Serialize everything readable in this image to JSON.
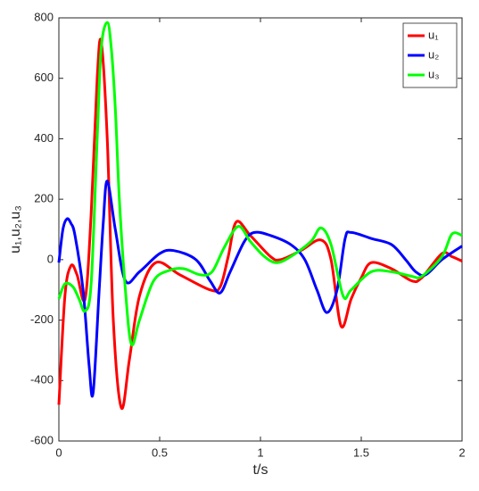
{
  "chart_data": {
    "type": "line",
    "xlabel": "t/s",
    "ylabel": "u₁,u₂,u₃",
    "xlim": [
      0,
      2
    ],
    "ylim": [
      -600,
      800
    ],
    "xticks": [
      0,
      0.5,
      1,
      1.5,
      2
    ],
    "yticks": [
      -600,
      -400,
      -200,
      0,
      200,
      400,
      600,
      800
    ],
    "legend": "upper right",
    "series": [
      {
        "name": "u₁",
        "color": "#ff0000",
        "x": [
          0,
          0.03,
          0.06,
          0.09,
          0.13,
          0.16,
          0.19,
          0.21,
          0.24,
          0.27,
          0.31,
          0.35,
          0.4,
          0.48,
          0.6,
          0.75,
          0.8,
          0.84,
          0.88,
          0.95,
          1.05,
          1.1,
          1.2,
          1.3,
          1.35,
          1.4,
          1.45,
          1.5,
          1.55,
          1.65,
          1.75,
          1.8,
          1.9,
          1.95,
          2
        ],
        "values": [
          -480,
          -120,
          -20,
          -50,
          -130,
          150,
          600,
          720,
          400,
          -200,
          -490,
          -330,
          -120,
          -10,
          -50,
          -100,
          -90,
          10,
          125,
          80,
          10,
          0,
          30,
          65,
          0,
          -220,
          -130,
          -60,
          -10,
          -30,
          -70,
          -60,
          20,
          10,
          -5
        ]
      },
      {
        "name": "u₂",
        "color": "#0000ff",
        "x": [
          0,
          0.02,
          0.04,
          0.06,
          0.08,
          0.12,
          0.15,
          0.17,
          0.2,
          0.22,
          0.24,
          0.28,
          0.33,
          0.4,
          0.5,
          0.57,
          0.68,
          0.75,
          0.8,
          0.85,
          0.92,
          0.97,
          1.05,
          1.15,
          1.22,
          1.28,
          1.33,
          1.38,
          1.42,
          1.45,
          1.55,
          1.65,
          1.72,
          1.77,
          1.82,
          1.9,
          2
        ],
        "values": [
          -10,
          100,
          135,
          120,
          80,
          -100,
          -350,
          -440,
          -100,
          120,
          260,
          100,
          -70,
          -40,
          20,
          30,
          0,
          -70,
          -110,
          -40,
          60,
          90,
          80,
          50,
          0,
          -100,
          -175,
          -100,
          70,
          90,
          70,
          50,
          0,
          -40,
          -50,
          0,
          45
        ]
      },
      {
        "name": "u₃",
        "color": "#00ff00",
        "x": [
          0,
          0.03,
          0.07,
          0.1,
          0.13,
          0.16,
          0.19,
          0.21,
          0.24,
          0.26,
          0.28,
          0.3,
          0.33,
          0.36,
          0.4,
          0.47,
          0.55,
          0.62,
          0.7,
          0.76,
          0.82,
          0.89,
          0.95,
          1.02,
          1.08,
          1.15,
          1.25,
          1.3,
          1.35,
          1.41,
          1.45,
          1.55,
          1.65,
          1.75,
          1.8,
          1.9,
          1.95,
          2
        ],
        "values": [
          -130,
          -80,
          -90,
          -130,
          -170,
          -80,
          400,
          700,
          785,
          700,
          500,
          200,
          -100,
          -280,
          -200,
          -70,
          -35,
          -30,
          -50,
          -40,
          40,
          110,
          60,
          10,
          -10,
          10,
          60,
          105,
          50,
          -120,
          -100,
          -40,
          -40,
          -55,
          -55,
          10,
          85,
          80
        ]
      }
    ]
  }
}
